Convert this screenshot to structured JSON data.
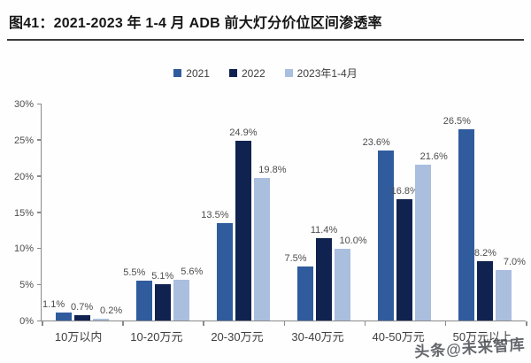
{
  "title": "图41：2021-2023 年 1-4 月 ADB 前大灯分价位区间渗透率",
  "watermark": "头条@未来智库",
  "colors": {
    "series_2021": "#305c9e",
    "series_2022": "#10224f",
    "series_2023": "#aabede",
    "title_text": "#161616",
    "axis": "#8a8a8a",
    "label_text": "#4d4d4d"
  },
  "chart_data": {
    "type": "bar",
    "title": "图41：2021-2023 年 1-4 月 ADB 前大灯分价位区间渗透率",
    "categories": [
      "10万以内",
      "10-20万元",
      "20-30万元",
      "30-40万元",
      "40-50万元",
      "50万元以上"
    ],
    "series": [
      {
        "name": "2021",
        "color": "#305c9e",
        "values": [
          1.1,
          5.5,
          13.5,
          7.5,
          23.6,
          26.5
        ]
      },
      {
        "name": "2022",
        "color": "#10224f",
        "values": [
          0.7,
          5.1,
          24.9,
          11.4,
          16.8,
          8.2
        ]
      },
      {
        "name": "2023年1-4月",
        "color": "#aabede",
        "values": [
          0.2,
          5.6,
          19.8,
          10.0,
          21.6,
          7.0
        ]
      }
    ],
    "data_label_format": "{v}%",
    "xlabel": "",
    "ylabel": "",
    "ylim": [
      0,
      30
    ],
    "yticks": [
      "0%",
      "5%",
      "10%",
      "15%",
      "20%",
      "25%",
      "30%"
    ],
    "grid": false,
    "legend_position": "top"
  }
}
